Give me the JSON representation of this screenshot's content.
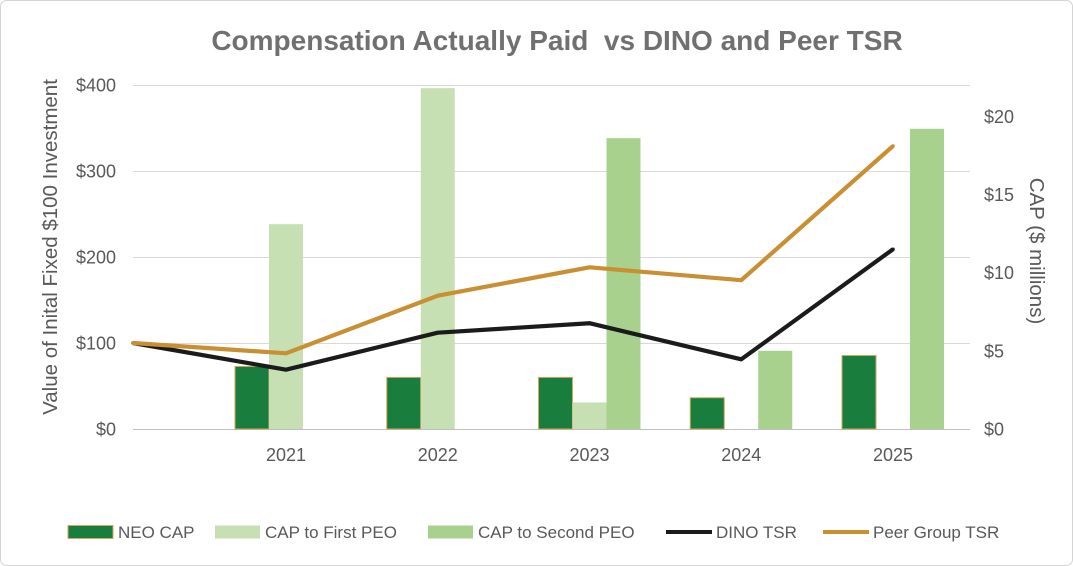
{
  "chart_data": {
    "type": "bar",
    "title": "Compensation Actually Paid  vs DINO and Peer TSR",
    "categories": [
      "2021",
      "2022",
      "2023",
      "2024",
      "2025"
    ],
    "y_left": {
      "label": "Value of Inital Fixed $100 Investment",
      "ylim": [
        0,
        400
      ],
      "ticks": [
        0,
        100,
        200,
        300,
        400
      ],
      "tick_labels": [
        "$0",
        "$100",
        "$200",
        "$300",
        "$400"
      ]
    },
    "y_right": {
      "label": "CAP ($ millions)",
      "ylim": [
        0,
        22
      ],
      "ticks": [
        0,
        5,
        10,
        15,
        20
      ],
      "tick_labels": [
        "$0",
        "$5",
        "$10",
        "$15",
        "$20"
      ]
    },
    "bar_series": [
      {
        "name": "NEO CAP",
        "axis": "right",
        "color": "#187d3d",
        "border_color": "#d6a65e",
        "values": [
          4.0,
          3.3,
          3.3,
          2.0,
          4.7
        ]
      },
      {
        "name": "CAP to First PEO",
        "axis": "right",
        "color": "#c6e0b4",
        "values": [
          13.1,
          21.8,
          1.7,
          null,
          null
        ]
      },
      {
        "name": "CAP to Second PEO",
        "axis": "right",
        "color": "#a9d18e",
        "values": [
          null,
          null,
          18.6,
          5.0,
          19.2
        ]
      }
    ],
    "line_series": [
      {
        "name": "DINO TSR",
        "axis": "left",
        "color": "#1b1b1b",
        "start_value": 100,
        "values": [
          69,
          112,
          123,
          81,
          209
        ]
      },
      {
        "name": "Peer Group TSR",
        "axis": "left",
        "color": "#c98f33",
        "start_value": 100,
        "values": [
          88,
          155,
          188,
          173,
          329
        ]
      }
    ],
    "grid": true,
    "legend": "bottom"
  },
  "colors": {
    "title": "#707070",
    "axis_text": "#595959",
    "gridline": "#d9d9d9",
    "axis_line": "#bfbfbf",
    "frame": "#d4d4d4",
    "background": "#ffffff"
  }
}
